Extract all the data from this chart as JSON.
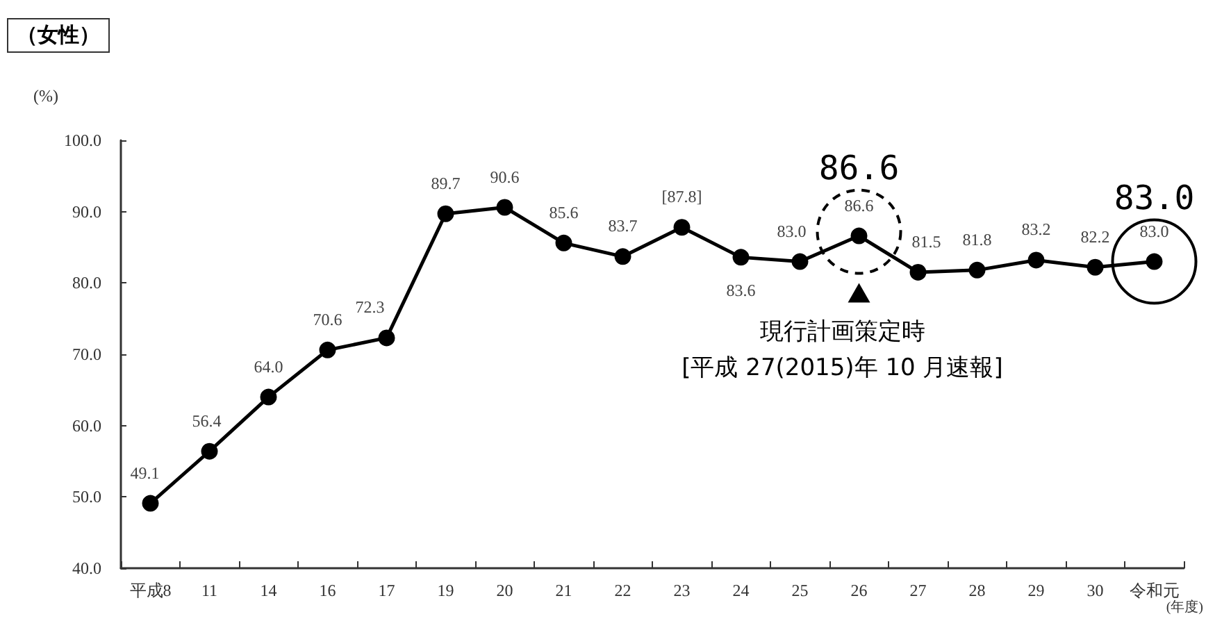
{
  "chart_data": {
    "type": "line",
    "title": "（女性）",
    "ylabel": "(%)",
    "xlabel": "(年度)",
    "categories": [
      "平成8",
      "11",
      "14",
      "16",
      "17",
      "19",
      "20",
      "21",
      "22",
      "23",
      "24",
      "25",
      "26",
      "27",
      "28",
      "29",
      "30",
      "令和元"
    ],
    "series": [
      {
        "color": "#000000",
        "values": [
          49.1,
          56.4,
          64.0,
          70.6,
          72.3,
          89.7,
          90.6,
          85.6,
          83.7,
          87.8,
          83.6,
          83.0,
          86.6,
          81.5,
          81.8,
          83.2,
          82.2,
          83.0
        ],
        "value_labels": [
          "49.1",
          "56.4",
          "64.0",
          "70.6",
          "72.3",
          "89.7",
          "90.6",
          "85.6",
          "83.7",
          "[87.8]",
          "83.6",
          "83.0",
          "86.6",
          "81.5",
          "81.8",
          "83.2",
          "82.2",
          "83.0"
        ]
      }
    ],
    "ylim": [
      40,
      100
    ],
    "yticks": [
      {
        "value": 40,
        "label": "40.0"
      },
      {
        "value": 50,
        "label": "50.0"
      },
      {
        "value": 60,
        "label": "60.0"
      },
      {
        "value": 70,
        "label": "70.0"
      },
      {
        "value": 80,
        "label": "80.0"
      },
      {
        "value": 90,
        "label": "90.0"
      },
      {
        "value": 100,
        "label": "100.0"
      }
    ],
    "annotations": [
      {
        "text": "86.6",
        "x": "26",
        "y": 86.6
      },
      {
        "text": "83.0",
        "x": "令和元",
        "y": 83.0
      },
      "現行計画策定時\n[平成 27(2015)年 10 月速報]"
    ],
    "grid": false,
    "marker": "circle",
    "line_style": "solid"
  }
}
